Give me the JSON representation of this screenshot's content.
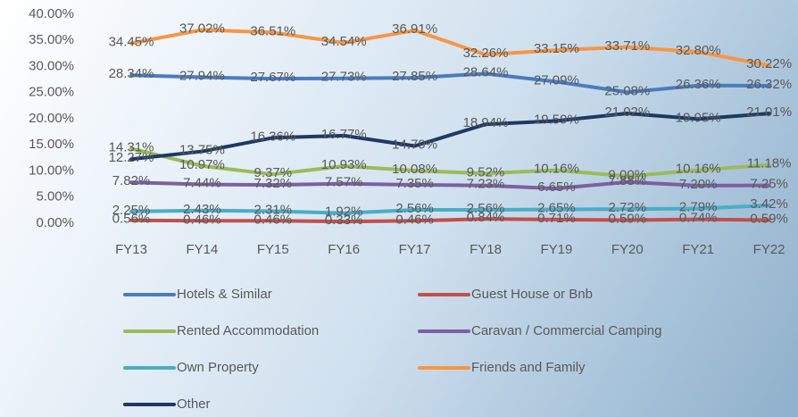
{
  "chart_data": {
    "type": "line",
    "categories": [
      "FY13",
      "FY14",
      "FY15",
      "FY16",
      "FY17",
      "FY18",
      "FY19",
      "FY20",
      "FY21",
      "FY22"
    ],
    "ylim": [
      0,
      40
    ],
    "yticks": [
      {
        "value": 0,
        "label": "0.00%"
      },
      {
        "value": 5,
        "label": "5.00%"
      },
      {
        "value": 10,
        "label": "10.00%"
      },
      {
        "value": 15,
        "label": "15.00%"
      },
      {
        "value": 20,
        "label": "20.00%"
      },
      {
        "value": 25,
        "label": "25.00%"
      },
      {
        "value": 30,
        "label": "30.00%"
      },
      {
        "value": 35,
        "label": "35.00%"
      },
      {
        "value": 40,
        "label": "40.00%"
      }
    ],
    "series": [
      {
        "name": "Hotels & Similar",
        "color": "#4a7cc0",
        "values": [
          28.34,
          27.94,
          27.67,
          27.73,
          27.85,
          28.64,
          27.09,
          25.08,
          26.36,
          26.32
        ],
        "value_labels": [
          "28.34%",
          "27.94%",
          "27.67%",
          "27.73%",
          "27.85%",
          "28.64%",
          "27.09%",
          "25.08%",
          "26.36%",
          "26.32%"
        ]
      },
      {
        "name": "Guest House or Bnb",
        "color": "#c0504d",
        "values": [
          0.56,
          0.46,
          0.46,
          0.33,
          0.46,
          0.84,
          0.71,
          0.59,
          0.74,
          0.59
        ],
        "value_labels": [
          "0.56%",
          "0.46%",
          "0.46%",
          "0.33%",
          "0.46%",
          "0.84%",
          "0.71%",
          "0.59%",
          "0.74%",
          "0.59%"
        ]
      },
      {
        "name": "Rented Accommodation",
        "color": "#9bbb59",
        "values": [
          14.31,
          10.97,
          9.37,
          10.93,
          10.08,
          9.52,
          10.16,
          9.0,
          10.16,
          11.18
        ],
        "value_labels": [
          "14.31%",
          "10.97%",
          "9.37%",
          "10.93%",
          "10.08%",
          "9.52%",
          "10.16%",
          "9.00%",
          "10.16%",
          "11.18%"
        ]
      },
      {
        "name": "Caravan / Commercial Camping",
        "color": "#7e5fa0",
        "values": [
          7.82,
          7.44,
          7.32,
          7.57,
          7.35,
          7.23,
          6.65,
          7.88,
          7.2,
          7.25
        ],
        "value_labels": [
          "7.82%",
          "7.44%",
          "7.32%",
          "7.57%",
          "7.35%",
          "7.23%",
          "6.65%",
          "7.88%",
          "7.20%",
          "7.25%"
        ]
      },
      {
        "name": "Own Property",
        "color": "#4bacc6",
        "values": [
          2.25,
          2.43,
          2.31,
          1.92,
          2.56,
          2.56,
          2.65,
          2.72,
          2.79,
          3.42
        ],
        "value_labels": [
          "2.25%",
          "2.43%",
          "2.31%",
          "1.92%",
          "2.56%",
          "2.56%",
          "2.65%",
          "2.72%",
          "2.79%",
          "3.42%"
        ]
      },
      {
        "name": "Friends and Family",
        "color": "#f79646",
        "values": [
          34.45,
          37.02,
          36.51,
          34.54,
          36.91,
          32.26,
          33.15,
          33.71,
          32.8,
          30.22
        ],
        "value_labels": [
          "34.45%",
          "37.02%",
          "36.51%",
          "34.54%",
          "36.91%",
          "32.26%",
          "33.15%",
          "33.71%",
          "32.80%",
          "30.22%"
        ]
      },
      {
        "name": "Other",
        "color": "#1f3864",
        "values": [
          12.27,
          13.75,
          16.36,
          16.77,
          14.79,
          18.94,
          19.59,
          21.02,
          19.95,
          21.01
        ],
        "value_labels": [
          "12.27%",
          "13.75%",
          "16.36%",
          "16.77%",
          "14.79%",
          "18.94%",
          "19.59%",
          "21.02%",
          "19.95%",
          "21.01%"
        ]
      }
    ]
  }
}
